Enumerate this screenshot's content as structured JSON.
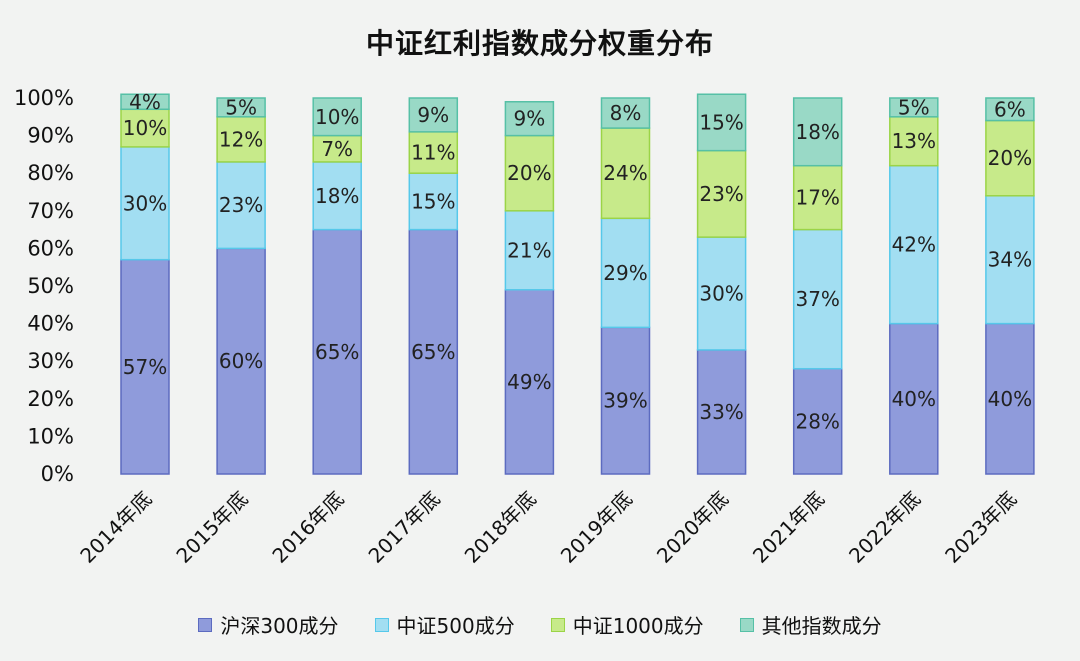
{
  "title": "中证红利指数成分权重分布",
  "colors": {
    "background": "#f2f3f2",
    "series_fill": [
      "#8f9bdb",
      "#a2def2",
      "#c7ea8a",
      "#99d9c6"
    ],
    "series_stroke": [
      "#5c6bc0",
      "#56c8ea",
      "#9bd447",
      "#56c0a6"
    ]
  },
  "legend": {
    "items": [
      "沪深300成分",
      "中证500成分",
      "中证1000成分",
      "其他指数成分"
    ]
  },
  "chart_data": {
    "type": "bar",
    "stacked": true,
    "title": "中证红利指数成分权重分布",
    "xlabel": "",
    "ylabel": "",
    "ylim": [
      0,
      100
    ],
    "yticks": [
      "0%",
      "10%",
      "20%",
      "30%",
      "40%",
      "50%",
      "60%",
      "70%",
      "80%",
      "90%",
      "100%"
    ],
    "grid": false,
    "legend_position": "bottom",
    "categories": [
      "2014年底",
      "2015年底",
      "2016年底",
      "2017年底",
      "2018年底",
      "2019年底",
      "2020年底",
      "2021年底",
      "2022年底",
      "2023年底"
    ],
    "series": [
      {
        "name": "沪深300成分",
        "values": [
          57,
          60,
          65,
          65,
          49,
          39,
          33,
          28,
          40,
          40
        ],
        "labels": [
          "57%",
          "60%",
          "65%",
          "65%",
          "49%",
          "39%",
          "33%",
          "28%",
          "40%",
          "40%"
        ]
      },
      {
        "name": "中证500成分",
        "values": [
          30,
          23,
          18,
          15,
          21,
          29,
          30,
          37,
          42,
          34
        ],
        "labels": [
          "30%",
          "23%",
          "18%",
          "15%",
          "21%",
          "29%",
          "30%",
          "37%",
          "42%",
          "34%"
        ]
      },
      {
        "name": "中证1000成分",
        "values": [
          10,
          12,
          7,
          11,
          20,
          24,
          23,
          17,
          13,
          20
        ],
        "labels": [
          "10%",
          "12%",
          "7%",
          "11%",
          "20%",
          "24%",
          "23%",
          "17%",
          "13%",
          "20%"
        ]
      },
      {
        "name": "其他指数成分",
        "values": [
          4,
          5,
          10,
          9,
          9,
          8,
          15,
          18,
          5,
          6
        ],
        "labels": [
          "4%",
          "5%",
          "10%",
          "9%",
          "9%",
          "8%",
          "15%",
          "18%",
          "5%",
          "6%"
        ]
      }
    ]
  }
}
